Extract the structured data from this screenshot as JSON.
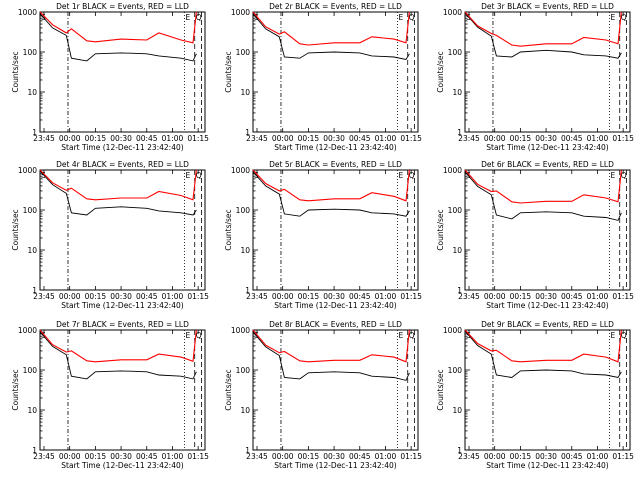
{
  "figure": {
    "xlabel": "Start Time (12-Dec-11 23:42:40)",
    "ylabel": "Counts/sec",
    "x_tick_labels": [
      "23:45",
      "00:00",
      "00:15",
      "00:30",
      "00:45",
      "01:00",
      "01:15"
    ],
    "y_tick_labels": [
      "1",
      "10",
      "100",
      "1000"
    ],
    "marker_s": "S",
    "marker_e": "E",
    "marker_q": "Q",
    "colors": {
      "events": "#000000",
      "lld": "#ff0000"
    }
  },
  "chart_data": [
    {
      "type": "line",
      "title": "Det 1r BLACK = Events, RED = LLD",
      "x": [
        "23:42:40",
        "23:50",
        "23:58",
        "00:01",
        "00:10",
        "00:15",
        "00:30",
        "00:45",
        "00:52",
        "01:05",
        "01:12",
        "01:14"
      ],
      "series": [
        {
          "name": "Events",
          "values": [
            900,
            400,
            260,
            70,
            60,
            90,
            95,
            90,
            80,
            70,
            60,
            90
          ]
        },
        {
          "name": "LLD",
          "values": [
            1000,
            480,
            300,
            380,
            190,
            180,
            210,
            200,
            300,
            200,
            170,
            1000
          ]
        }
      ],
      "ylim": [
        1,
        1000
      ],
      "yscale": "log",
      "grid": false
    },
    {
      "type": "line",
      "title": "Det 2r BLACK = Events, RED = LLD",
      "x": [
        "23:42:40",
        "23:50",
        "23:58",
        "00:01",
        "00:10",
        "00:15",
        "00:30",
        "00:45",
        "00:52",
        "01:05",
        "01:12",
        "01:14"
      ],
      "series": [
        {
          "name": "Events",
          "values": [
            900,
            380,
            240,
            75,
            70,
            95,
            100,
            95,
            80,
            75,
            65,
            90
          ]
        },
        {
          "name": "LLD",
          "values": [
            1000,
            430,
            280,
            320,
            160,
            150,
            170,
            170,
            240,
            210,
            170,
            1000
          ]
        }
      ],
      "ylim": [
        1,
        1000
      ],
      "yscale": "log",
      "grid": false
    },
    {
      "type": "line",
      "title": "Det 3r BLACK = Events, RED = LLD",
      "x": [
        "23:42:40",
        "23:50",
        "23:58",
        "00:01",
        "00:10",
        "00:15",
        "00:30",
        "00:45",
        "00:52",
        "01:05",
        "01:12",
        "01:14"
      ],
      "series": [
        {
          "name": "Events",
          "values": [
            950,
            420,
            250,
            80,
            75,
            100,
            110,
            100,
            85,
            80,
            70,
            95
          ]
        },
        {
          "name": "LLD",
          "values": [
            1000,
            450,
            290,
            260,
            150,
            140,
            160,
            160,
            230,
            200,
            160,
            1000
          ]
        }
      ],
      "ylim": [
        1,
        1000
      ],
      "yscale": "log",
      "grid": false
    },
    {
      "type": "line",
      "title": "Det 4r BLACK = Events, RED = LLD",
      "x": [
        "23:42:40",
        "23:50",
        "23:58",
        "00:01",
        "00:10",
        "00:15",
        "00:30",
        "00:45",
        "00:52",
        "01:05",
        "01:12",
        "01:14"
      ],
      "series": [
        {
          "name": "Events",
          "values": [
            950,
            430,
            260,
            85,
            75,
            110,
            120,
            110,
            95,
            85,
            75,
            100
          ]
        },
        {
          "name": "LLD",
          "values": [
            1000,
            480,
            310,
            350,
            190,
            180,
            200,
            200,
            290,
            230,
            180,
            1000
          ]
        }
      ],
      "ylim": [
        1,
        1000
      ],
      "yscale": "log",
      "grid": false
    },
    {
      "type": "line",
      "title": "Det 5r BLACK = Events, RED = LLD",
      "x": [
        "23:42:40",
        "23:50",
        "23:58",
        "00:01",
        "00:10",
        "00:15",
        "00:30",
        "00:45",
        "00:52",
        "01:05",
        "01:12",
        "01:14"
      ],
      "series": [
        {
          "name": "Events",
          "values": [
            900,
            400,
            250,
            80,
            70,
            100,
            105,
            100,
            85,
            80,
            70,
            95
          ]
        },
        {
          "name": "LLD",
          "values": [
            1000,
            460,
            300,
            330,
            180,
            170,
            190,
            190,
            270,
            220,
            170,
            1000
          ]
        }
      ],
      "ylim": [
        1,
        1000
      ],
      "yscale": "log",
      "grid": false
    },
    {
      "type": "line",
      "title": "Det 6r BLACK = Events, RED = LLD",
      "x": [
        "23:42:40",
        "23:50",
        "23:58",
        "00:01",
        "00:10",
        "00:15",
        "00:30",
        "00:45",
        "00:52",
        "01:05",
        "01:12",
        "01:14"
      ],
      "series": [
        {
          "name": "Events",
          "values": [
            900,
            390,
            240,
            75,
            60,
            85,
            90,
            85,
            70,
            65,
            55,
            85
          ]
        },
        {
          "name": "LLD",
          "values": [
            1000,
            440,
            290,
            300,
            160,
            150,
            165,
            165,
            240,
            200,
            160,
            1000
          ]
        }
      ],
      "ylim": [
        1,
        1000
      ],
      "yscale": "log",
      "grid": false
    },
    {
      "type": "line",
      "title": "Det 7r BLACK = Events, RED = LLD",
      "x": [
        "23:42:40",
        "23:50",
        "23:58",
        "00:01",
        "00:10",
        "00:15",
        "00:30",
        "00:45",
        "00:52",
        "01:05",
        "01:12",
        "01:14"
      ],
      "series": [
        {
          "name": "Events",
          "values": [
            900,
            390,
            240,
            70,
            60,
            90,
            95,
            90,
            75,
            70,
            60,
            90
          ]
        },
        {
          "name": "LLD",
          "values": [
            1000,
            430,
            280,
            300,
            170,
            160,
            180,
            180,
            250,
            210,
            165,
            1000
          ]
        }
      ],
      "ylim": [
        1,
        1000
      ],
      "yscale": "log",
      "grid": false
    },
    {
      "type": "line",
      "title": "Det 8r BLACK = Events, RED = LLD",
      "x": [
        "23:42:40",
        "23:50",
        "23:58",
        "00:01",
        "00:10",
        "00:15",
        "00:30",
        "00:45",
        "00:52",
        "01:05",
        "01:12",
        "01:14"
      ],
      "series": [
        {
          "name": "Events",
          "values": [
            900,
            380,
            230,
            65,
            60,
            85,
            90,
            85,
            70,
            65,
            55,
            85
          ]
        },
        {
          "name": "LLD",
          "values": [
            1000,
            420,
            270,
            290,
            170,
            160,
            175,
            175,
            240,
            210,
            160,
            1000
          ]
        }
      ],
      "ylim": [
        1,
        1000
      ],
      "yscale": "log",
      "grid": false
    },
    {
      "type": "line",
      "title": "Det 9r BLACK = Events, RED = LLD",
      "x": [
        "23:42:40",
        "23:50",
        "23:58",
        "00:01",
        "00:10",
        "00:15",
        "00:30",
        "00:45",
        "00:52",
        "01:05",
        "01:12",
        "01:14"
      ],
      "series": [
        {
          "name": "Events",
          "values": [
            950,
            410,
            250,
            75,
            65,
            95,
            100,
            95,
            80,
            75,
            65,
            90
          ]
        },
        {
          "name": "LLD",
          "values": [
            1000,
            460,
            300,
            310,
            170,
            160,
            175,
            175,
            250,
            210,
            160,
            1000
          ]
        }
      ],
      "ylim": [
        1,
        1000
      ],
      "yscale": "log",
      "grid": false
    }
  ]
}
